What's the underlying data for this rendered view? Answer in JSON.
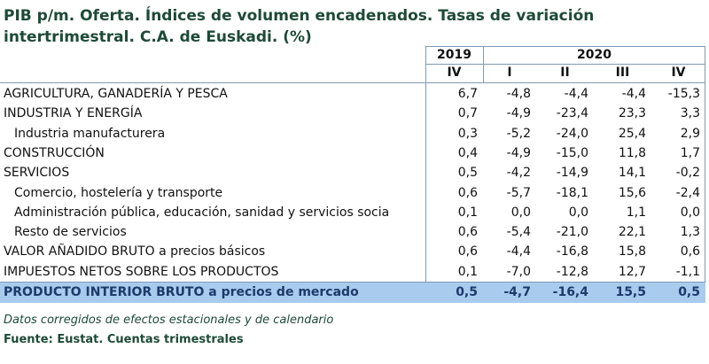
{
  "header": {
    "title_lines": [
      "PIB p/m. Oferta. Índices de volumen encadenados. Tasas de variación",
      "intertrimestral. C.A. de Euskadi. (%)"
    ]
  },
  "table": {
    "years": [
      "2019",
      "2020"
    ],
    "quarters": [
      "IV",
      "I",
      "II",
      "III",
      "IV"
    ],
    "rows": [
      {
        "label": "AGRICULTURA, GANADERÍA Y PESCA",
        "indent": false,
        "values": [
          "6,7",
          "-4,8",
          "-4,4",
          "-4,4",
          "-15,3"
        ]
      },
      {
        "label": "INDUSTRIA Y ENERGÍA",
        "indent": false,
        "values": [
          "0,7",
          "-4,9",
          "-23,4",
          "23,3",
          "3,3"
        ]
      },
      {
        "label": "Industria manufacturera",
        "indent": true,
        "values": [
          "0,3",
          "-5,2",
          "-24,0",
          "25,4",
          "2,9"
        ]
      },
      {
        "label": "CONSTRUCCIÓN",
        "indent": false,
        "values": [
          "0,4",
          "-4,9",
          "-15,0",
          "11,8",
          "1,7"
        ]
      },
      {
        "label": "SERVICIOS",
        "indent": false,
        "values": [
          "0,5",
          "-4,2",
          "-14,9",
          "14,1",
          "-0,2"
        ]
      },
      {
        "label": "Comercio, hostelería y transporte",
        "indent": true,
        "values": [
          "0,6",
          "-5,7",
          "-18,1",
          "15,6",
          "-2,4"
        ]
      },
      {
        "label": "Administración pública, educación, sanidad y servicios socia",
        "indent": true,
        "values": [
          "0,1",
          "0,0",
          "0,0",
          "1,1",
          "0,0"
        ]
      },
      {
        "label": "Resto de servicios",
        "indent": true,
        "values": [
          "0,6",
          "-5,4",
          "-21,0",
          "22,1",
          "1,3"
        ]
      },
      {
        "label": "VALOR AÑADIDO BRUTO a precios básicos",
        "indent": false,
        "values": [
          "0,6",
          "-4,4",
          "-16,8",
          "15,8",
          "0,6"
        ]
      },
      {
        "label": "IMPUESTOS NETOS SOBRE LOS PRODUCTOS",
        "indent": false,
        "values": [
          "0,1",
          "-7,0",
          "-12,8",
          "12,7",
          "-1,1"
        ]
      }
    ],
    "total": {
      "label": "PRODUCTO INTERIOR BRUTO a precios de mercado",
      "values": [
        "0,5",
        "-4,7",
        "-16,4",
        "15,5",
        "0,5"
      ]
    }
  },
  "footer": {
    "note": "Datos corregidos de efectos estacionales y de calendario",
    "source": "Fuente: Eustat. Cuentas trimestrales"
  }
}
